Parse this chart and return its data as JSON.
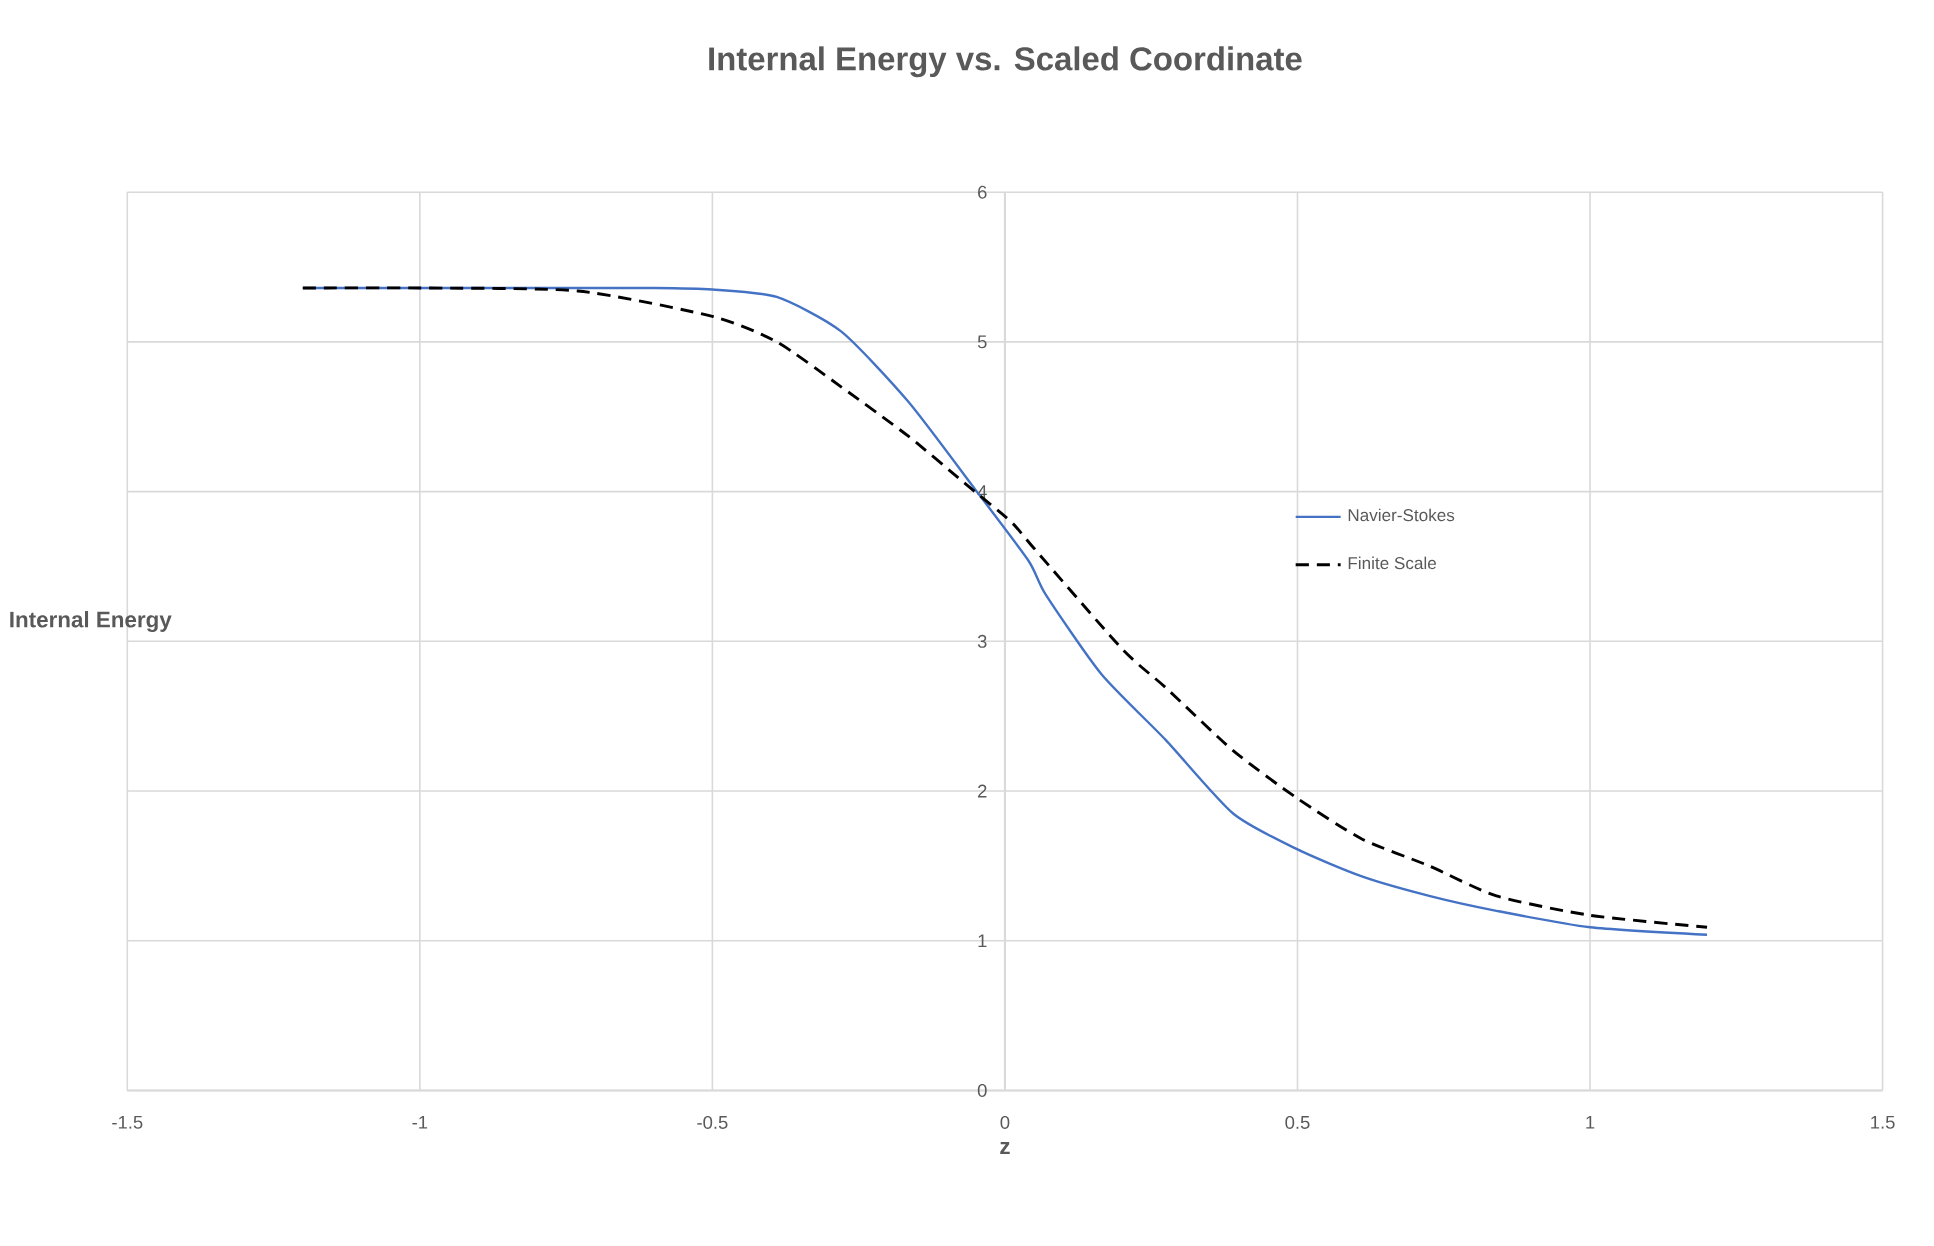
{
  "chart_data": {
    "type": "line",
    "title": "Internal Energy vs. Scaled Coordinate",
    "xlabel": "z",
    "ylabel": "Internal Energy",
    "xlim": [
      -1.5,
      1.5
    ],
    "xticks": [
      -1.5,
      -1,
      -0.5,
      0,
      0.5,
      1,
      1.5
    ],
    "ylim": [
      0,
      6
    ],
    "yticks": [
      0,
      1,
      2,
      3,
      4,
      5,
      6
    ],
    "grid": true,
    "legend": "right",
    "series": [
      {
        "name": "Navier-Stokes",
        "color": "#4472c4",
        "line_style": "solid",
        "x": [
          -1.2,
          -1.0,
          -0.8,
          -0.6,
          -0.5,
          -0.39,
          -0.28,
          -0.165,
          -0.05,
          0.04,
          0.07,
          0.165,
          0.275,
          0.39,
          0.5,
          0.61,
          0.725,
          0.84,
          1.0,
          1.2
        ],
        "values": [
          5.36,
          5.36,
          5.36,
          5.36,
          5.35,
          5.3,
          5.07,
          4.6,
          4.01,
          3.54,
          3.31,
          2.78,
          2.34,
          1.85,
          1.61,
          1.43,
          1.3,
          1.2,
          1.09,
          1.04
        ]
      },
      {
        "name": "Finite Scale",
        "color": "#000000",
        "line_style": "dashed",
        "x": [
          -1.2,
          -1.0,
          -0.73,
          -0.5,
          -0.39,
          -0.28,
          -0.165,
          -0.07,
          0.01,
          0.05,
          0.2,
          0.275,
          0.39,
          0.5,
          0.61,
          0.725,
          0.84,
          1.0,
          1.2
        ],
        "values": [
          5.36,
          5.36,
          5.34,
          5.17,
          5.0,
          4.7,
          4.37,
          4.06,
          3.8,
          3.62,
          2.95,
          2.69,
          2.27,
          1.95,
          1.68,
          1.5,
          1.3,
          1.17,
          1.09
        ]
      }
    ]
  }
}
